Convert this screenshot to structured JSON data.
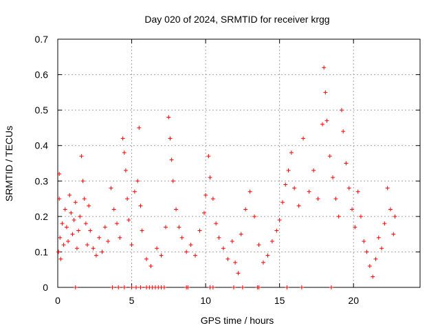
{
  "chart_data": {
    "type": "scatter",
    "title": "Day 020 of 2024, SRMTID for receiver krgg",
    "xlabel": "GPS time / hours",
    "ylabel": "SRMTID / TECUs",
    "xlim": [
      0,
      24.5
    ],
    "ylim": [
      0,
      0.7
    ],
    "xticks": [
      0,
      5,
      10,
      15,
      20
    ],
    "yticks": [
      0,
      0.1,
      0.2,
      0.3,
      0.4,
      0.5,
      0.6,
      0.7
    ],
    "xtick_labels": [
      "0",
      "5",
      "10",
      "15",
      "20"
    ],
    "ytick_labels": [
      "0",
      "0.1",
      "0.2",
      "0.3",
      "0.4",
      "0.5",
      "0.6",
      "0.7"
    ],
    "grid": true,
    "marker": "+",
    "series_color": "#ff0000",
    "series": [
      {
        "name": "SRMTID",
        "points": [
          [
            0.05,
            0.1
          ],
          [
            0.1,
            0.32
          ],
          [
            0.1,
            0.25
          ],
          [
            0.15,
            0.14
          ],
          [
            0.2,
            0.08
          ],
          [
            0.3,
            0.18
          ],
          [
            0.4,
            0.12
          ],
          [
            0.5,
            0.22
          ],
          [
            0.6,
            0.17
          ],
          [
            0.7,
            0.13
          ],
          [
            0.8,
            0.26
          ],
          [
            0.9,
            0.21
          ],
          [
            1.0,
            0.15
          ],
          [
            1.1,
            0.19
          ],
          [
            1.2,
            0.24
          ],
          [
            1.3,
            0.11
          ],
          [
            1.4,
            0.16
          ],
          [
            1.5,
            0.2
          ],
          [
            1.6,
            0.37
          ],
          [
            1.7,
            0.3
          ],
          [
            1.8,
            0.25
          ],
          [
            1.9,
            0.18
          ],
          [
            2.0,
            0.12
          ],
          [
            2.1,
            0.23
          ],
          [
            2.2,
            0.16
          ],
          [
            2.4,
            0.11
          ],
          [
            2.6,
            0.09
          ],
          [
            2.8,
            0.14
          ],
          [
            3.0,
            0.1
          ],
          [
            3.2,
            0.17
          ],
          [
            3.4,
            0.13
          ],
          [
            3.6,
            0.28
          ],
          [
            3.8,
            0.22
          ],
          [
            4.0,
            0.18
          ],
          [
            4.2,
            0.14
          ],
          [
            4.4,
            0.42
          ],
          [
            4.5,
            0.38
          ],
          [
            4.6,
            0.33
          ],
          [
            4.7,
            0.25
          ],
          [
            4.8,
            0.19
          ],
          [
            5.0,
            0.12
          ],
          [
            5.2,
            0.27
          ],
          [
            5.4,
            0.3
          ],
          [
            5.5,
            0.45
          ],
          [
            5.6,
            0.23
          ],
          [
            5.7,
            0.16
          ],
          [
            6.0,
            0.08
          ],
          [
            6.3,
            0.06
          ],
          [
            6.7,
            0.11
          ],
          [
            7.0,
            0.09
          ],
          [
            7.3,
            0.17
          ],
          [
            7.5,
            0.48
          ],
          [
            7.6,
            0.42
          ],
          [
            7.7,
            0.36
          ],
          [
            7.8,
            0.3
          ],
          [
            8.0,
            0.22
          ],
          [
            8.2,
            0.17
          ],
          [
            8.4,
            0.14
          ],
          [
            8.7,
            0.1
          ],
          [
            9.0,
            0.12
          ],
          [
            9.3,
            0.09
          ],
          [
            9.6,
            0.16
          ],
          [
            9.9,
            0.21
          ],
          [
            10.0,
            0.26
          ],
          [
            10.2,
            0.37
          ],
          [
            10.3,
            0.31
          ],
          [
            10.5,
            0.25
          ],
          [
            10.7,
            0.18
          ],
          [
            10.9,
            0.14
          ],
          [
            11.2,
            0.11
          ],
          [
            11.5,
            0.08
          ],
          [
            11.8,
            0.13
          ],
          [
            12.0,
            0.07
          ],
          [
            12.2,
            0.04
          ],
          [
            12.4,
            0.15
          ],
          [
            12.7,
            0.22
          ],
          [
            13.0,
            0.27
          ],
          [
            13.3,
            0.2
          ],
          [
            13.6,
            0.12
          ],
          [
            13.9,
            0.07
          ],
          [
            14.2,
            0.09
          ],
          [
            14.5,
            0.13
          ],
          [
            14.8,
            0.16
          ],
          [
            15.0,
            0.19
          ],
          [
            15.2,
            0.24
          ],
          [
            15.4,
            0.29
          ],
          [
            15.6,
            0.33
          ],
          [
            15.8,
            0.38
          ],
          [
            16.0,
            0.28
          ],
          [
            16.3,
            0.23
          ],
          [
            16.6,
            0.42
          ],
          [
            17.0,
            0.27
          ],
          [
            17.3,
            0.33
          ],
          [
            17.6,
            0.25
          ],
          [
            17.9,
            0.46
          ],
          [
            18.0,
            0.62
          ],
          [
            18.1,
            0.55
          ],
          [
            18.2,
            0.47
          ],
          [
            18.4,
            0.37
          ],
          [
            18.6,
            0.31
          ],
          [
            18.8,
            0.25
          ],
          [
            19.0,
            0.2
          ],
          [
            19.2,
            0.5
          ],
          [
            19.3,
            0.44
          ],
          [
            19.5,
            0.35
          ],
          [
            19.7,
            0.28
          ],
          [
            19.9,
            0.22
          ],
          [
            20.1,
            0.17
          ],
          [
            20.3,
            0.27
          ],
          [
            20.5,
            0.2
          ],
          [
            20.7,
            0.13
          ],
          [
            20.9,
            0.1
          ],
          [
            21.1,
            0.06
          ],
          [
            21.3,
            0.03
          ],
          [
            21.5,
            0.08
          ],
          [
            21.7,
            0.14
          ],
          [
            21.9,
            0.11
          ],
          [
            22.1,
            0.18
          ],
          [
            22.3,
            0.28
          ],
          [
            22.5,
            0.22
          ],
          [
            22.7,
            0.15
          ],
          [
            22.8,
            0.2
          ]
        ]
      }
    ],
    "zero_points_x": [
      1.2,
      3.7,
      4.1,
      4.5,
      5.0,
      5.3,
      5.6,
      6.0,
      6.2,
      6.4,
      6.6,
      6.8,
      7.0,
      7.2,
      8.7,
      8.8,
      10.3,
      10.5,
      11.9,
      12.5,
      13.5,
      13.6,
      15.5,
      16.5,
      18.5
    ]
  }
}
